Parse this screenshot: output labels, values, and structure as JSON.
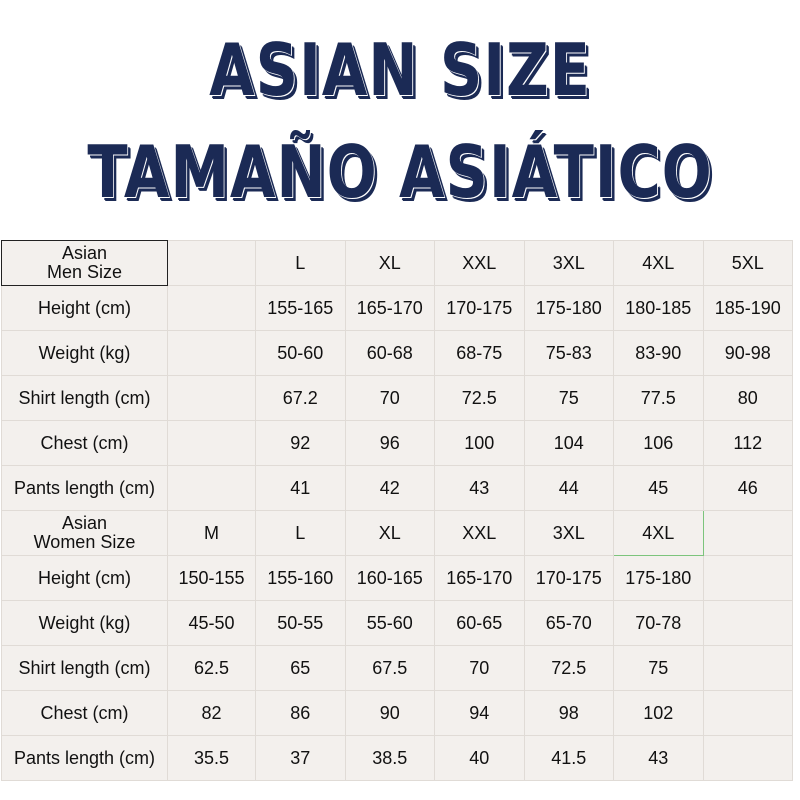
{
  "title": {
    "line1": "ASIAN SIZE",
    "line2": "TAMAÑO ASIÁTICO"
  },
  "colors": {
    "title": "#1b2a55",
    "size_label": "#e13a2a",
    "table_bg": "#f3f0ed"
  },
  "men": {
    "header_line1": "Asian",
    "header_line2": "Men Size",
    "sizes": [
      "",
      "L",
      "XL",
      "XXL",
      "3XL",
      "4XL",
      "5XL"
    ],
    "rows": [
      {
        "label": "Height (cm)",
        "values": [
          "",
          "155-165",
          "165-170",
          "170-175",
          "175-180",
          "180-185",
          "185-190"
        ]
      },
      {
        "label": "Weight (kg)",
        "values": [
          "",
          "50-60",
          "60-68",
          "68-75",
          "75-83",
          "83-90",
          "90-98"
        ]
      },
      {
        "label": "Shirt length (cm)",
        "values": [
          "",
          "67.2",
          "70",
          "72.5",
          "75",
          "77.5",
          "80"
        ]
      },
      {
        "label": "Chest (cm)",
        "values": [
          "",
          "92",
          "96",
          "100",
          "104",
          "106",
          "112"
        ]
      },
      {
        "label": "Pants length (cm)",
        "values": [
          "",
          "41",
          "42",
          "43",
          "44",
          "45",
          "46"
        ]
      }
    ]
  },
  "women": {
    "header_line1": "Asian",
    "header_line2": "Women Size",
    "sizes": [
      "M",
      "L",
      "XL",
      "XXL",
      "3XL",
      "4XL",
      ""
    ],
    "rows": [
      {
        "label": "Height (cm)",
        "values": [
          "150-155",
          "155-160",
          "160-165",
          "165-170",
          "170-175",
          "175-180",
          ""
        ]
      },
      {
        "label": "Weight (kg)",
        "values": [
          "45-50",
          "50-55",
          "55-60",
          "60-65",
          "65-70",
          "70-78",
          ""
        ]
      },
      {
        "label": "Shirt length (cm)",
        "values": [
          "62.5",
          "65",
          "67.5",
          "70",
          "72.5",
          "75",
          ""
        ]
      },
      {
        "label": "Chest (cm)",
        "values": [
          "82",
          "86",
          "90",
          "94",
          "98",
          "102",
          ""
        ]
      },
      {
        "label": "Pants length (cm)",
        "values": [
          "35.5",
          "37",
          "38.5",
          "40",
          "41.5",
          "43",
          ""
        ]
      }
    ]
  }
}
